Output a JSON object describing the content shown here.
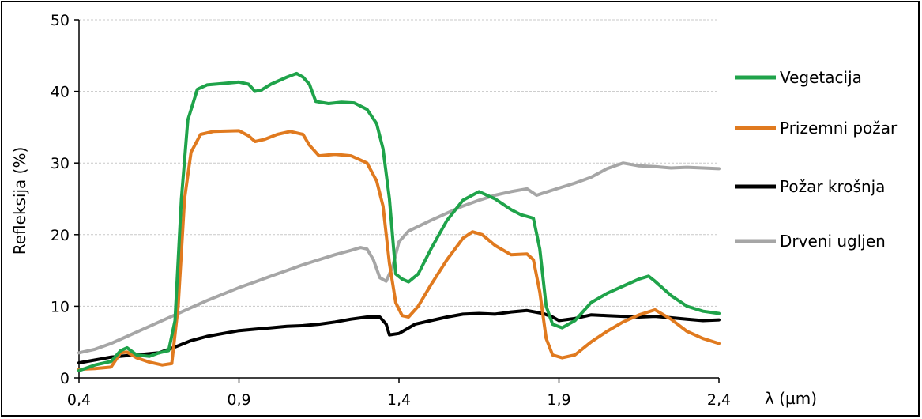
{
  "chart_data": {
    "type": "line",
    "title": "",
    "ylabel": "Refleksija (%)",
    "xlabel": "λ (µm)",
    "xlim": [
      0.4,
      2.4
    ],
    "ylim": [
      0,
      50
    ],
    "x_ticks": [
      0.4,
      0.9,
      1.4,
      1.9,
      2.4
    ],
    "x_tick_labels": [
      "0,4",
      "0,9",
      "1,4",
      "1,9",
      "2,4"
    ],
    "y_ticks": [
      0,
      10,
      20,
      30,
      40,
      50
    ],
    "y_tick_labels": [
      "0",
      "10",
      "20",
      "30",
      "40",
      "50"
    ],
    "grid": "horizontal dashed",
    "legend_position": "right",
    "series": [
      {
        "name": "Vegetacija",
        "color": "#1fa34a",
        "points": [
          [
            0.4,
            1.0
          ],
          [
            0.45,
            1.8
          ],
          [
            0.5,
            2.3
          ],
          [
            0.53,
            3.8
          ],
          [
            0.55,
            4.2
          ],
          [
            0.58,
            3.2
          ],
          [
            0.62,
            3.0
          ],
          [
            0.65,
            3.5
          ],
          [
            0.68,
            3.8
          ],
          [
            0.7,
            8.0
          ],
          [
            0.72,
            25.0
          ],
          [
            0.74,
            36.0
          ],
          [
            0.77,
            40.3
          ],
          [
            0.8,
            40.9
          ],
          [
            0.85,
            41.1
          ],
          [
            0.9,
            41.3
          ],
          [
            0.93,
            41.0
          ],
          [
            0.95,
            40.0
          ],
          [
            0.97,
            40.2
          ],
          [
            1.0,
            41.0
          ],
          [
            1.05,
            42.0
          ],
          [
            1.08,
            42.5
          ],
          [
            1.1,
            42.0
          ],
          [
            1.12,
            41.0
          ],
          [
            1.14,
            38.6
          ],
          [
            1.18,
            38.3
          ],
          [
            1.22,
            38.5
          ],
          [
            1.26,
            38.4
          ],
          [
            1.3,
            37.5
          ],
          [
            1.33,
            35.5
          ],
          [
            1.35,
            32.0
          ],
          [
            1.37,
            25.0
          ],
          [
            1.39,
            14.5
          ],
          [
            1.41,
            13.8
          ],
          [
            1.43,
            13.4
          ],
          [
            1.46,
            14.5
          ],
          [
            1.5,
            18.0
          ],
          [
            1.55,
            22.0
          ],
          [
            1.6,
            24.8
          ],
          [
            1.65,
            26.0
          ],
          [
            1.7,
            25.0
          ],
          [
            1.75,
            23.5
          ],
          [
            1.78,
            22.8
          ],
          [
            1.82,
            22.3
          ],
          [
            1.84,
            18.0
          ],
          [
            1.86,
            10.0
          ],
          [
            1.88,
            7.5
          ],
          [
            1.91,
            7.0
          ],
          [
            1.95,
            8.0
          ],
          [
            2.0,
            10.5
          ],
          [
            2.05,
            11.8
          ],
          [
            2.1,
            12.8
          ],
          [
            2.15,
            13.8
          ],
          [
            2.18,
            14.2
          ],
          [
            2.2,
            13.5
          ],
          [
            2.25,
            11.5
          ],
          [
            2.3,
            10.0
          ],
          [
            2.35,
            9.3
          ],
          [
            2.4,
            9.0
          ]
        ]
      },
      {
        "name": "Prizemni požar",
        "color": "#e07a1f",
        "points": [
          [
            0.4,
            1.2
          ],
          [
            0.45,
            1.3
          ],
          [
            0.5,
            1.5
          ],
          [
            0.53,
            3.5
          ],
          [
            0.55,
            3.6
          ],
          [
            0.58,
            2.8
          ],
          [
            0.62,
            2.2
          ],
          [
            0.66,
            1.8
          ],
          [
            0.69,
            2.0
          ],
          [
            0.71,
            10.0
          ],
          [
            0.73,
            25.0
          ],
          [
            0.75,
            31.5
          ],
          [
            0.78,
            34.0
          ],
          [
            0.82,
            34.4
          ],
          [
            0.9,
            34.5
          ],
          [
            0.93,
            33.8
          ],
          [
            0.95,
            33.0
          ],
          [
            0.98,
            33.3
          ],
          [
            1.02,
            34.0
          ],
          [
            1.06,
            34.4
          ],
          [
            1.1,
            34.0
          ],
          [
            1.12,
            32.5
          ],
          [
            1.15,
            31.0
          ],
          [
            1.2,
            31.2
          ],
          [
            1.25,
            31.0
          ],
          [
            1.3,
            30.0
          ],
          [
            1.33,
            27.5
          ],
          [
            1.35,
            24.0
          ],
          [
            1.37,
            16.0
          ],
          [
            1.39,
            10.5
          ],
          [
            1.41,
            8.7
          ],
          [
            1.43,
            8.5
          ],
          [
            1.46,
            10.0
          ],
          [
            1.5,
            13.0
          ],
          [
            1.55,
            16.5
          ],
          [
            1.6,
            19.5
          ],
          [
            1.63,
            20.4
          ],
          [
            1.66,
            20.0
          ],
          [
            1.7,
            18.5
          ],
          [
            1.75,
            17.2
          ],
          [
            1.8,
            17.3
          ],
          [
            1.82,
            16.5
          ],
          [
            1.84,
            12.0
          ],
          [
            1.86,
            5.5
          ],
          [
            1.88,
            3.2
          ],
          [
            1.91,
            2.8
          ],
          [
            1.95,
            3.2
          ],
          [
            2.0,
            5.0
          ],
          [
            2.05,
            6.5
          ],
          [
            2.1,
            7.8
          ],
          [
            2.15,
            8.8
          ],
          [
            2.2,
            9.5
          ],
          [
            2.25,
            8.2
          ],
          [
            2.3,
            6.5
          ],
          [
            2.35,
            5.5
          ],
          [
            2.4,
            4.8
          ]
        ]
      },
      {
        "name": "Požar krošnja",
        "color": "#000000",
        "points": [
          [
            0.4,
            2.1
          ],
          [
            0.45,
            2.5
          ],
          [
            0.5,
            2.9
          ],
          [
            0.55,
            3.1
          ],
          [
            0.6,
            3.3
          ],
          [
            0.65,
            3.5
          ],
          [
            0.7,
            4.3
          ],
          [
            0.75,
            5.2
          ],
          [
            0.8,
            5.8
          ],
          [
            0.85,
            6.2
          ],
          [
            0.9,
            6.6
          ],
          [
            0.95,
            6.8
          ],
          [
            1.0,
            7.0
          ],
          [
            1.05,
            7.2
          ],
          [
            1.1,
            7.3
          ],
          [
            1.15,
            7.5
          ],
          [
            1.2,
            7.8
          ],
          [
            1.25,
            8.2
          ],
          [
            1.3,
            8.5
          ],
          [
            1.34,
            8.5
          ],
          [
            1.36,
            7.5
          ],
          [
            1.37,
            6.0
          ],
          [
            1.4,
            6.2
          ],
          [
            1.45,
            7.5
          ],
          [
            1.5,
            8.0
          ],
          [
            1.55,
            8.5
          ],
          [
            1.6,
            8.9
          ],
          [
            1.65,
            9.0
          ],
          [
            1.7,
            8.9
          ],
          [
            1.75,
            9.2
          ],
          [
            1.8,
            9.4
          ],
          [
            1.85,
            9.0
          ],
          [
            1.88,
            8.5
          ],
          [
            1.9,
            8.0
          ],
          [
            1.95,
            8.3
          ],
          [
            2.0,
            8.8
          ],
          [
            2.05,
            8.7
          ],
          [
            2.1,
            8.6
          ],
          [
            2.15,
            8.5
          ],
          [
            2.2,
            8.6
          ],
          [
            2.25,
            8.4
          ],
          [
            2.3,
            8.2
          ],
          [
            2.35,
            8.0
          ],
          [
            2.4,
            8.1
          ]
        ]
      },
      {
        "name": "Drveni ugljen",
        "color": "#a6a6a6",
        "points": [
          [
            0.4,
            3.5
          ],
          [
            0.45,
            4.0
          ],
          [
            0.5,
            4.8
          ],
          [
            0.55,
            5.8
          ],
          [
            0.6,
            6.8
          ],
          [
            0.65,
            7.8
          ],
          [
            0.7,
            8.8
          ],
          [
            0.75,
            9.8
          ],
          [
            0.8,
            10.8
          ],
          [
            0.85,
            11.7
          ],
          [
            0.9,
            12.6
          ],
          [
            0.95,
            13.4
          ],
          [
            1.0,
            14.2
          ],
          [
            1.05,
            15.0
          ],
          [
            1.1,
            15.8
          ],
          [
            1.15,
            16.5
          ],
          [
            1.2,
            17.2
          ],
          [
            1.25,
            17.8
          ],
          [
            1.28,
            18.2
          ],
          [
            1.3,
            18.0
          ],
          [
            1.32,
            16.5
          ],
          [
            1.34,
            14.0
          ],
          [
            1.36,
            13.5
          ],
          [
            1.38,
            15.5
          ],
          [
            1.4,
            19.0
          ],
          [
            1.43,
            20.5
          ],
          [
            1.5,
            22.0
          ],
          [
            1.55,
            23.0
          ],
          [
            1.6,
            24.0
          ],
          [
            1.65,
            24.8
          ],
          [
            1.7,
            25.5
          ],
          [
            1.75,
            26.0
          ],
          [
            1.8,
            26.4
          ],
          [
            1.83,
            25.5
          ],
          [
            1.85,
            25.8
          ],
          [
            1.9,
            26.5
          ],
          [
            1.95,
            27.2
          ],
          [
            2.0,
            28.0
          ],
          [
            2.05,
            29.2
          ],
          [
            2.1,
            30.0
          ],
          [
            2.15,
            29.6
          ],
          [
            2.2,
            29.5
          ],
          [
            2.25,
            29.3
          ],
          [
            2.3,
            29.4
          ],
          [
            2.35,
            29.3
          ],
          [
            2.4,
            29.2
          ]
        ]
      }
    ]
  }
}
